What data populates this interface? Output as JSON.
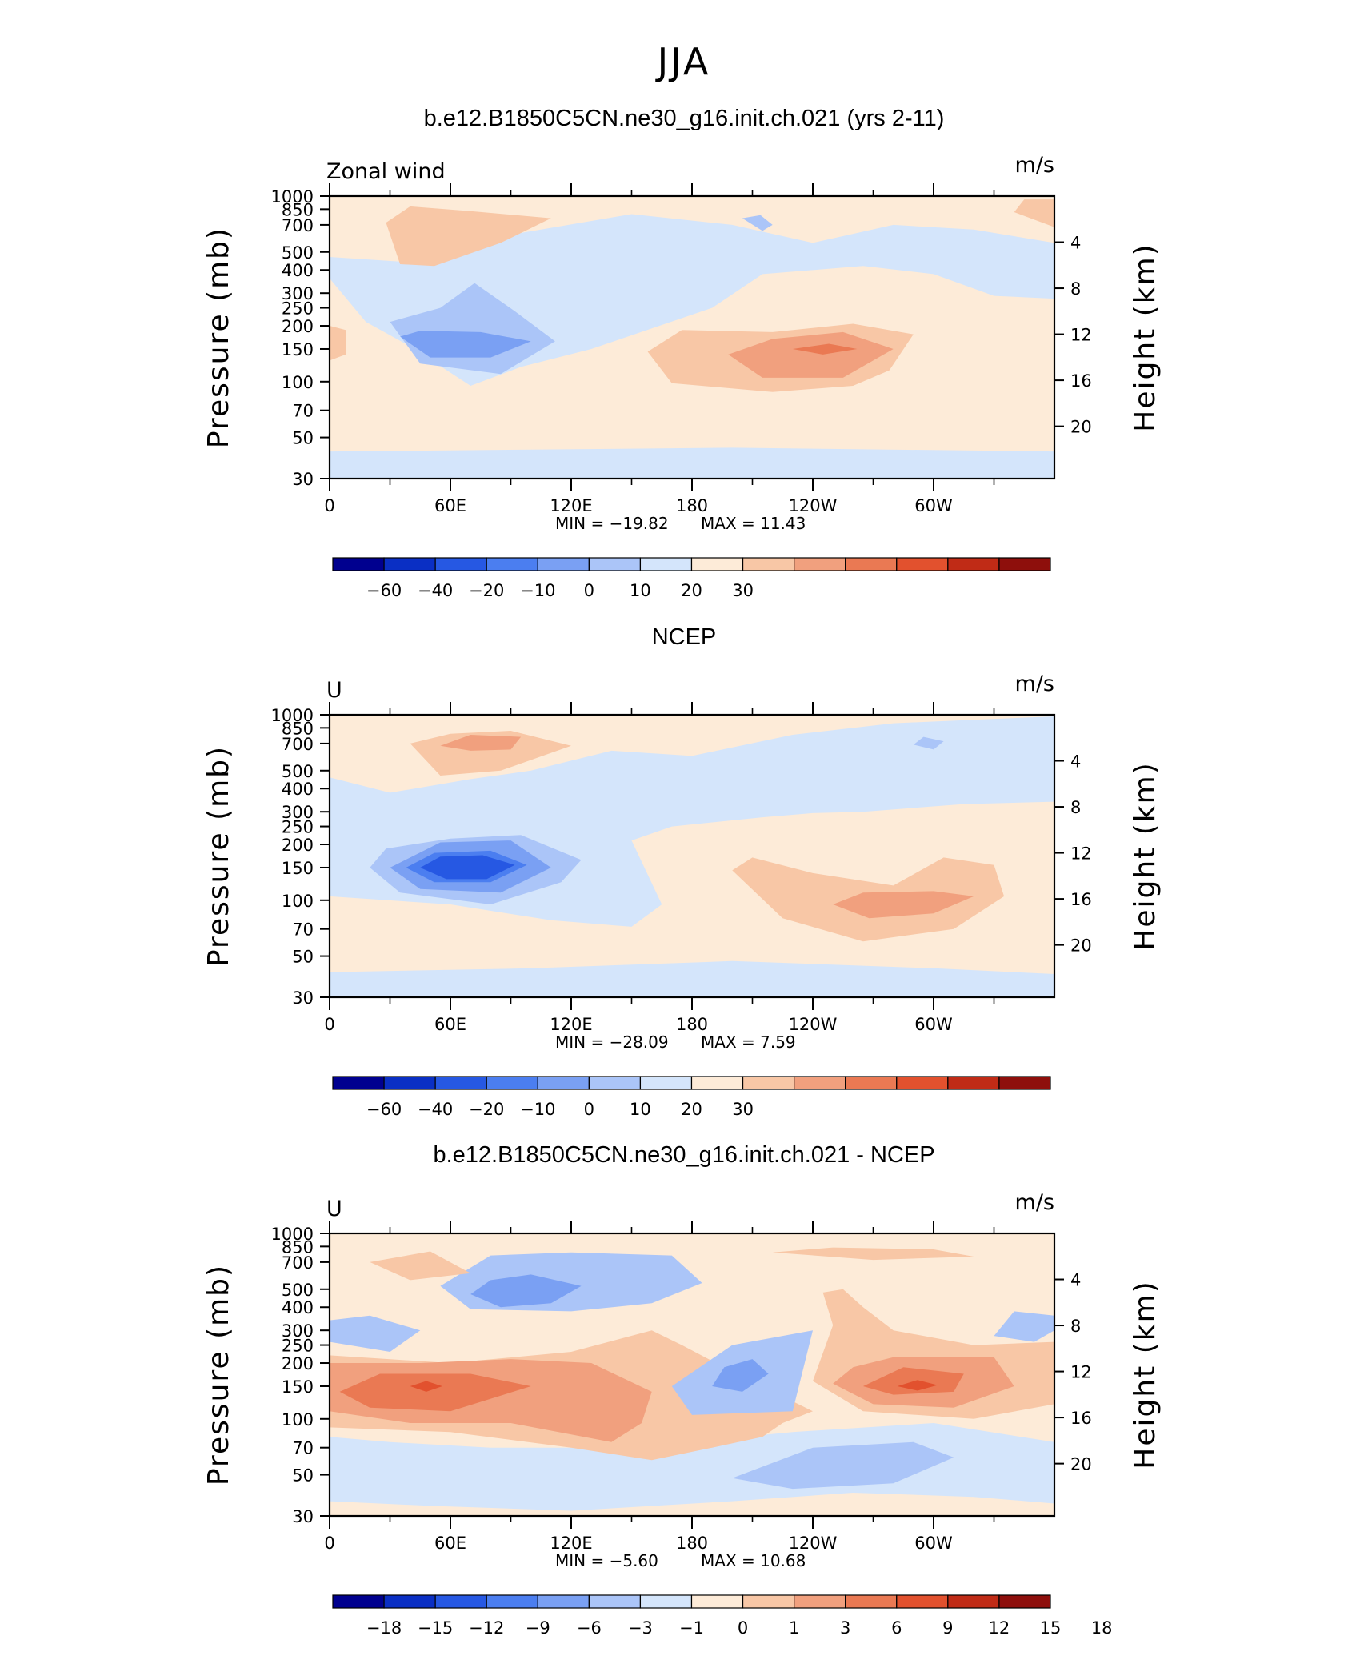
{
  "figure": {
    "season": "JJA",
    "panels": [
      {
        "title": "b.e12.B1850C5CN.ne30_g16.init.ch.021 (yrs 2-11)",
        "left_label": "Zonal wind",
        "units": "m/s",
        "min_label": "MIN = −19.82",
        "max_label": "MAX =   11.43"
      },
      {
        "title": "NCEP",
        "left_label": "U",
        "units": "m/s",
        "min_label": "MIN = −28.09",
        "max_label": "MAX =     7.59"
      },
      {
        "title": "b.e12.B1850C5CN.ne30_g16.init.ch.021 - NCEP",
        "left_label": "U",
        "units": "m/s",
        "min_label": "MIN =    −5.60",
        "max_label": "MAX =   10.68"
      }
    ],
    "y_left_title": "Pressure (mb)",
    "y_right_title": "Height (km)"
  },
  "chart_data": [
    {
      "type": "heatmap",
      "title": "b.e12.B1850C5CN.ne30_g16.init.ch.021 (yrs 2-11)",
      "variable": "Zonal wind",
      "units": "m/s",
      "x_ticks": [
        "0",
        "60E",
        "120E",
        "180",
        "120W",
        "60W"
      ],
      "x_range_deg": [
        0,
        360
      ],
      "y_left_ticks": [
        "30",
        "50",
        "70",
        "100",
        "150",
        "200",
        "250",
        "300",
        "400",
        "500",
        "700",
        "850",
        "1000"
      ],
      "y_right_ticks": [
        "20",
        "16",
        "12",
        "8",
        "4"
      ],
      "ylim_mb": [
        1000,
        30
      ],
      "min": -19.82,
      "max": 11.43,
      "colorbar_ticks": [
        "−60",
        "−40",
        "−20",
        "−10",
        "0",
        "10",
        "20",
        "30"
      ],
      "colorbar_colors": [
        "#00008f",
        "#0a2fc4",
        "#2658e3",
        "#4b7ef0",
        "#7aa0f3",
        "#abc5f8",
        "#d4e5fb",
        "#fdebd8",
        "#f8c7a6",
        "#f1a07e",
        "#ea7953",
        "#e2512e",
        "#c02b16",
        "#8e0f0c"
      ],
      "features": [
        {
          "kind": "easterly_jet",
          "lon": 80,
          "p_mb": 150,
          "value": -17.5
        },
        {
          "kind": "westerly_jet",
          "lon": 300,
          "p_mb": 150,
          "value": 11
        }
      ]
    },
    {
      "type": "heatmap",
      "title": "NCEP",
      "variable": "U",
      "units": "m/s",
      "x_ticks": [
        "0",
        "60E",
        "120E",
        "180",
        "120W",
        "60W"
      ],
      "x_range_deg": [
        0,
        360
      ],
      "y_left_ticks": [
        "30",
        "50",
        "70",
        "100",
        "150",
        "200",
        "250",
        "300",
        "400",
        "500",
        "700",
        "850",
        "1000"
      ],
      "y_right_ticks": [
        "20",
        "16",
        "12",
        "8",
        "4"
      ],
      "ylim_mb": [
        1000,
        30
      ],
      "min": -28.09,
      "max": 7.59,
      "colorbar_ticks": [
        "−60",
        "−40",
        "−20",
        "−10",
        "0",
        "10",
        "20",
        "30"
      ],
      "colorbar_colors": [
        "#00008f",
        "#0a2fc4",
        "#2658e3",
        "#4b7ef0",
        "#7aa0f3",
        "#abc5f8",
        "#d4e5fb",
        "#fdebd8",
        "#f8c7a6",
        "#f1a07e",
        "#ea7953",
        "#e2512e",
        "#c02b16",
        "#8e0f0c"
      ],
      "features": [
        {
          "kind": "easterly_jet",
          "lon": 80,
          "p_mb": 150,
          "value": -25
        },
        {
          "kind": "westerly_jet",
          "lon": 290,
          "p_mb": 110,
          "value": 7
        }
      ]
    },
    {
      "type": "heatmap",
      "title": "b.e12.B1850C5CN.ne30_g16.init.ch.021 - NCEP",
      "variable": "U",
      "units": "m/s",
      "x_ticks": [
        "0",
        "60E",
        "120E",
        "180",
        "120W",
        "60W"
      ],
      "x_range_deg": [
        0,
        360
      ],
      "y_left_ticks": [
        "30",
        "50",
        "70",
        "100",
        "150",
        "200",
        "250",
        "300",
        "400",
        "500",
        "700",
        "850",
        "1000"
      ],
      "y_right_ticks": [
        "20",
        "16",
        "12",
        "8",
        "4"
      ],
      "ylim_mb": [
        1000,
        30
      ],
      "min": -5.6,
      "max": 10.68,
      "colorbar_ticks": [
        "−18",
        "−15",
        "−12",
        "−9",
        "−6",
        "−3",
        "−1",
        "0",
        "1",
        "3",
        "6",
        "9",
        "12",
        "15",
        "18"
      ],
      "colorbar_colors": [
        "#00008f",
        "#0a2fc4",
        "#2658e3",
        "#4b7ef0",
        "#7aa0f3",
        "#abc5f8",
        "#d4e5fb",
        "#fdebd8",
        "#f8c7a6",
        "#f1a07e",
        "#ea7953",
        "#e2512e",
        "#c02b16",
        "#8e0f0c"
      ],
      "features": [
        {
          "kind": "positive_diff",
          "lon": 290,
          "p_mb": 150,
          "value": 10.5
        },
        {
          "kind": "positive_diff",
          "lon": 50,
          "p_mb": 150,
          "value": 9
        }
      ]
    }
  ]
}
